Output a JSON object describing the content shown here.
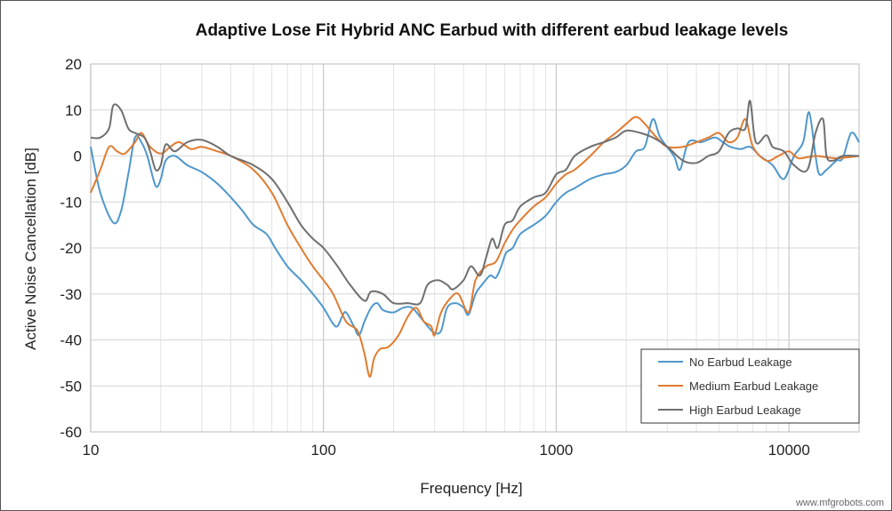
{
  "chart_data": {
    "type": "line",
    "title": "Adaptive Lose Fit Hybrid ANC Earbud with different earbud leakage levels",
    "xlabel": "Frequency  [Hz]",
    "ylabel": "Active Noise Cancellation  [dB]",
    "xscale": "log",
    "xlim": [
      10,
      20000
    ],
    "ylim": [
      -60,
      20
    ],
    "xticks": [
      10,
      100,
      1000,
      10000
    ],
    "yticks": [
      20,
      10,
      0,
      -10,
      -20,
      -30,
      -40,
      -50,
      -60
    ],
    "grid": true,
    "legend_position": "bottom-right",
    "series": [
      {
        "name": "No Earbud Leakage",
        "color": "#4e97cc",
        "x": [
          10,
          11,
          12.5,
          13.5,
          14.5,
          15.5,
          16.5,
          17.5,
          19,
          20,
          21,
          23,
          26,
          30,
          35,
          40,
          45,
          50,
          57,
          62,
          70,
          80,
          90,
          100,
          110,
          115,
          120,
          125,
          135,
          142,
          150,
          160,
          170,
          180,
          200,
          220,
          240,
          260,
          280,
          300,
          320,
          340,
          370,
          400,
          420,
          450,
          480,
          520,
          550,
          580,
          610,
          650,
          700,
          800,
          900,
          1000,
          1100,
          1200,
          1400,
          1600,
          1800,
          2000,
          2200,
          2400,
          2600,
          2800,
          3200,
          3400,
          3700,
          4200,
          4800,
          5200,
          5600,
          6200,
          6800,
          7500,
          8500,
          9500,
          10500,
          11500,
          12200,
          13000,
          13500,
          14500,
          16000,
          17000,
          18500,
          20000
        ],
        "y": [
          2,
          -8,
          -14.5,
          -12,
          -4,
          4,
          3,
          0,
          -6.5,
          -5,
          -1,
          0,
          -2,
          -3.5,
          -6,
          -9,
          -12,
          -15,
          -17,
          -20,
          -24,
          -27,
          -30,
          -33,
          -36.5,
          -37,
          -35,
          -34,
          -37,
          -39,
          -36,
          -33,
          -32,
          -33.5,
          -34,
          -33,
          -33,
          -35,
          -37,
          -38.5,
          -38,
          -33,
          -32,
          -33,
          -34.5,
          -30,
          -28,
          -26,
          -26.5,
          -24,
          -21,
          -20,
          -17,
          -15,
          -13,
          -10,
          -8,
          -7,
          -5,
          -4,
          -3.5,
          -2,
          1,
          2,
          8,
          4,
          0,
          -3,
          3,
          3,
          4,
          3,
          2,
          1.5,
          2,
          0,
          -2,
          -5,
          0,
          3,
          9.5,
          0,
          -4,
          -3,
          -1,
          -0.5,
          5,
          3
        ]
      },
      {
        "name": "Medium Earbud Leakage",
        "color": "#e07b30",
        "x": [
          10,
          11,
          12,
          13,
          14,
          15.5,
          16.5,
          18,
          20,
          22,
          24,
          27,
          30,
          35,
          40,
          50,
          60,
          70,
          80,
          90,
          100,
          110,
          125,
          140,
          150,
          158,
          165,
          175,
          190,
          210,
          230,
          250,
          270,
          290,
          300,
          320,
          350,
          380,
          420,
          450,
          500,
          550,
          600,
          650,
          700,
          800,
          900,
          1000,
          1100,
          1200,
          1400,
          1600,
          1800,
          2000,
          2200,
          2400,
          2700,
          3000,
          3500,
          4000,
          4500,
          5000,
          5500,
          6000,
          6500,
          7000,
          8000,
          9000,
          10000,
          11000,
          13000,
          16000,
          20000
        ],
        "y": [
          -8,
          -3,
          2,
          1,
          0.5,
          3,
          5,
          2,
          0.5,
          2,
          3,
          1.5,
          2,
          1,
          0,
          -3,
          -8,
          -15,
          -20,
          -24,
          -27,
          -30,
          -36,
          -38,
          -43,
          -48,
          -44,
          -42,
          -41.5,
          -39,
          -35,
          -33,
          -36,
          -37,
          -39,
          -34,
          -31,
          -30,
          -34,
          -27,
          -24,
          -23,
          -19,
          -16,
          -14,
          -11,
          -9,
          -6,
          -4,
          -3,
          0,
          3,
          5,
          7,
          8.5,
          7,
          4,
          2,
          2,
          3,
          4,
          5,
          3,
          4,
          8,
          2,
          -1,
          0,
          1,
          -0.5,
          0,
          -0.5,
          0
        ]
      },
      {
        "name": "High Earbud Leakage",
        "color": "#6f6f6f",
        "x": [
          10,
          11,
          12,
          12.5,
          13.5,
          14.5,
          15.5,
          17,
          18,
          19,
          20,
          21,
          23,
          26,
          30,
          35,
          40,
          50,
          60,
          70,
          80,
          90,
          100,
          115,
          130,
          150,
          160,
          180,
          200,
          230,
          260,
          280,
          310,
          340,
          360,
          400,
          430,
          470,
          500,
          530,
          560,
          600,
          650,
          700,
          800,
          900,
          1000,
          1100,
          1200,
          1400,
          1600,
          1800,
          2000,
          2300,
          2600,
          3000,
          3500,
          4000,
          4500,
          5000,
          5500,
          6000,
          6500,
          6800,
          7200,
          8000,
          8500,
          9500,
          10500,
          12000,
          13000,
          14000,
          14500,
          15500,
          17000,
          20000
        ],
        "y": [
          4,
          4,
          6,
          11,
          10,
          6,
          5,
          4,
          1,
          -3,
          -2,
          2.5,
          1,
          3,
          3.5,
          2,
          0,
          -2,
          -5,
          -10,
          -15,
          -18,
          -20,
          -24,
          -28,
          -31.5,
          -29.5,
          -30,
          -32,
          -32,
          -32,
          -28,
          -27,
          -28,
          -29,
          -27,
          -24,
          -26,
          -22,
          -18,
          -20,
          -15,
          -14,
          -11,
          -9,
          -8,
          -4,
          -3,
          0,
          2,
          3,
          4,
          5.5,
          5,
          4,
          2,
          -1,
          -1.5,
          0,
          1,
          5,
          6,
          6,
          12,
          3,
          4.5,
          2,
          1,
          -2,
          -3,
          5,
          8,
          0,
          -1,
          0,
          0
        ]
      }
    ]
  },
  "watermark": "www.mfgrobots.com"
}
